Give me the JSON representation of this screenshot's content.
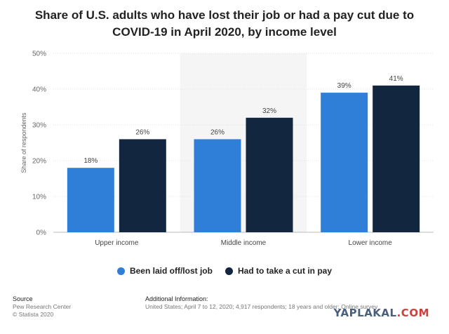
{
  "title": "Share of U.S. adults who have lost their job or had a pay cut due to COVID-19 in April 2020, by income level",
  "chart_data": {
    "type": "bar",
    "categories": [
      "Upper income",
      "Middle income",
      "Lower income"
    ],
    "series": [
      {
        "name": "Been laid off/lost job",
        "values": [
          18,
          26,
          39
        ],
        "color": "#2f7ed8"
      },
      {
        "name": "Had to take a cut in pay",
        "values": [
          26,
          32,
          41
        ],
        "color": "#12263f"
      }
    ],
    "ylabel": "Share of respondents",
    "ylim": [
      0,
      50
    ],
    "yticks": [
      "0%",
      "10%",
      "20%",
      "30%",
      "40%",
      "50%"
    ],
    "value_suffix": "%",
    "grid": true,
    "highlighted_category": "Middle income",
    "legend_position": "bottom"
  },
  "legend": {
    "items": [
      {
        "label": "Been laid off/lost job",
        "color": "#2f7ed8"
      },
      {
        "label": "Had to take a cut in pay",
        "color": "#12263f"
      }
    ]
  },
  "footer": {
    "source_header": "Source",
    "source_lines": [
      "Pew Research Center",
      "© Statista 2020"
    ],
    "info_header": "Additional Information:",
    "info_text": "United States; April 7 to 12, 2020; 4,917 respondents; 18 years and older; Online survey"
  },
  "watermark": {
    "text": "YAPLAKAL",
    "suffix": ".COM"
  }
}
